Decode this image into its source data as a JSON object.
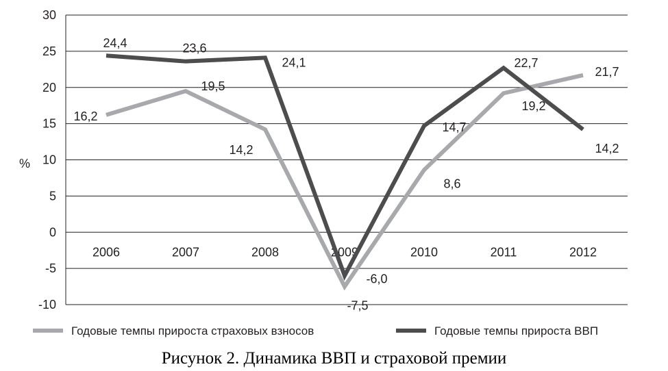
{
  "chart_data": {
    "type": "line",
    "categories": [
      "2006",
      "2007",
      "2008",
      "2009",
      "2010",
      "2011",
      "2012"
    ],
    "series": [
      {
        "name": "Годовые темпы прироста страховых взносов",
        "values": [
          16.2,
          19.5,
          14.2,
          -7.5,
          8.6,
          19.2,
          21.7
        ],
        "labels": [
          "16,2",
          "19,5",
          "14,2",
          "-7,5",
          "8,6",
          "19,2",
          "21,7"
        ],
        "color": "#a7a9ac"
      },
      {
        "name": "Годовые темпы прироста ВВП",
        "values": [
          24.4,
          23.6,
          24.1,
          -6.0,
          14.7,
          22.7,
          14.2
        ],
        "labels": [
          "24,4",
          "23,6",
          "24,1",
          "-6,0",
          "14,7",
          "22,7",
          "14,2"
        ],
        "color": "#4d4d4f"
      }
    ],
    "ylabel": "%",
    "xlabel": "",
    "ylim": [
      -10,
      30
    ],
    "yticks": [
      "30",
      "25",
      "20",
      "15",
      "10",
      "5",
      "0",
      "-5",
      "-10"
    ],
    "grid": true,
    "legend_position": "bottom"
  },
  "caption": "Рисунок 2. Динамика ВВП и страховой премии"
}
